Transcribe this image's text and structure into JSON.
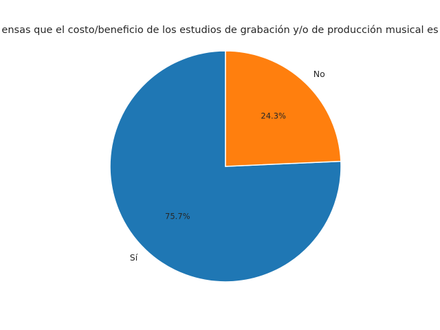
{
  "chart_data": {
    "type": "pie",
    "title": "ensas que el costo/beneficio de los estudios de grabación y/o de producción musical es",
    "categories": [
      "Sí",
      "No"
    ],
    "values": [
      75.7,
      24.3
    ],
    "value_labels": [
      "75.7%",
      "24.3%"
    ],
    "colors": [
      "#1f77b4",
      "#ff7f0e"
    ]
  }
}
